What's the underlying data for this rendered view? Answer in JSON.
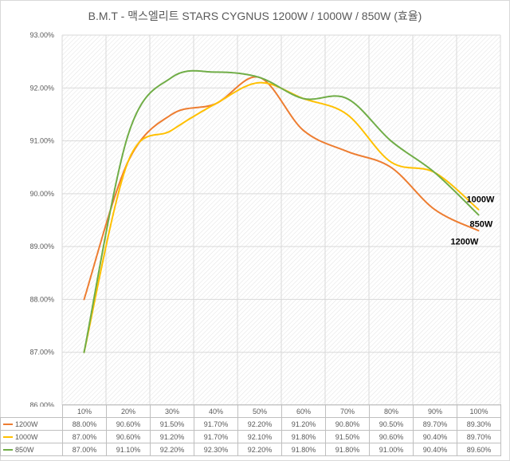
{
  "chart_data": {
    "type": "line",
    "title": "B.M.T - 맥스엘리트 STARS CYGNUS 1200W / 1000W / 850W (효율)",
    "categories": [
      "10%",
      "20%",
      "30%",
      "40%",
      "50%",
      "60%",
      "70%",
      "80%",
      "90%",
      "100%"
    ],
    "ylim": [
      86,
      93
    ],
    "yticks": [
      "86.00%",
      "87.00%",
      "88.00%",
      "89.00%",
      "90.00%",
      "91.00%",
      "92.00%",
      "93.00%"
    ],
    "grid": true,
    "legend": "data-table-bottom",
    "series": [
      {
        "name": "1200W",
        "color": "#ED7D31",
        "values": [
          88.0,
          90.6,
          91.5,
          91.7,
          92.2,
          91.2,
          90.8,
          90.5,
          89.7,
          89.3
        ],
        "labels": [
          "88.00%",
          "90.60%",
          "91.50%",
          "91.70%",
          "92.20%",
          "91.20%",
          "90.80%",
          "90.50%",
          "89.70%",
          "89.30%"
        ]
      },
      {
        "name": "1000W",
        "color": "#FFC000",
        "values": [
          87.0,
          90.6,
          91.2,
          91.7,
          92.1,
          91.8,
          91.5,
          90.6,
          90.4,
          89.7
        ],
        "labels": [
          "87.00%",
          "90.60%",
          "91.20%",
          "91.70%",
          "92.10%",
          "91.80%",
          "91.50%",
          "90.60%",
          "90.40%",
          "89.70%"
        ]
      },
      {
        "name": "850W",
        "color": "#70AD47",
        "values": [
          87.0,
          91.1,
          92.2,
          92.3,
          92.2,
          91.8,
          91.8,
          91.0,
          90.4,
          89.6
        ],
        "labels": [
          "87.00%",
          "91.10%",
          "92.20%",
          "92.30%",
          "92.20%",
          "91.80%",
          "91.80%",
          "91.00%",
          "90.40%",
          "89.60%"
        ]
      }
    ]
  }
}
